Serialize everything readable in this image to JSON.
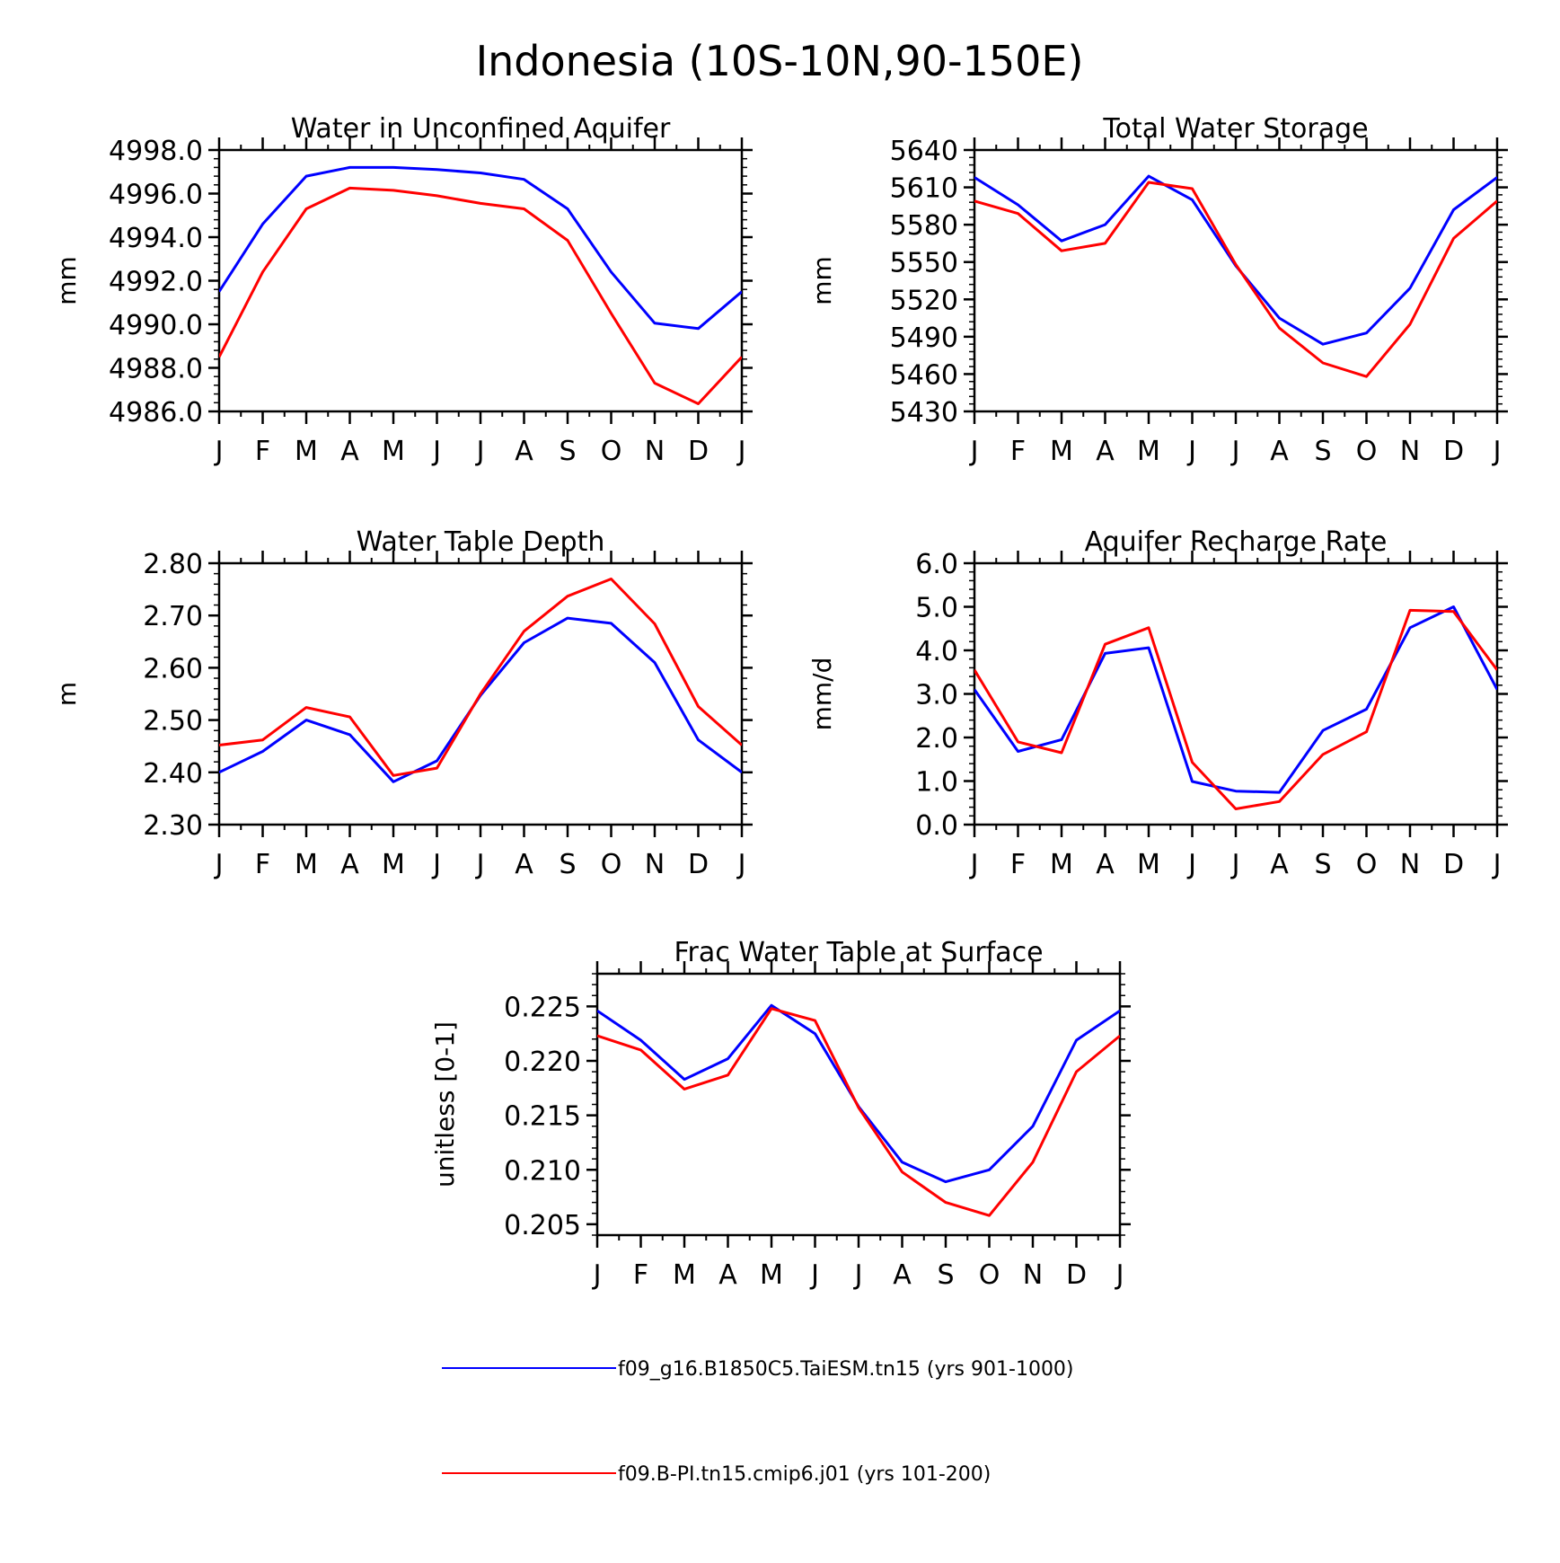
{
  "figure": {
    "title": "Indonesia (10S-10N,90-150E)"
  },
  "legend": [
    {
      "label": "f09_g16.B1850C5.TaiESM.tn15 (yrs 901-1000)",
      "color": "#0000ff"
    },
    {
      "label": "f09.B-PI.tn15.cmip6.j01 (yrs 101-200)",
      "color": "#ff0000"
    }
  ],
  "chart_data": [
    {
      "type": "line",
      "title": "Water in Unconfined Aquifer",
      "xlabel": "",
      "ylabel": "mm",
      "x": [
        "J",
        "F",
        "M",
        "A",
        "M",
        "J",
        "J",
        "A",
        "S",
        "O",
        "N",
        "D",
        "J"
      ],
      "ylim": [
        4986.0,
        4998.0
      ],
      "yticks": [
        4986.0,
        4988.0,
        4990.0,
        4992.0,
        4994.0,
        4996.0,
        4998.0
      ],
      "ytick_labels": [
        "4986.0",
        "4988.0",
        "4990.0",
        "4992.0",
        "4994.0",
        "4996.0",
        "4998.0"
      ],
      "series": [
        {
          "name": "f09_g16.B1850C5.TaiESM.tn15 (yrs 901-1000)",
          "color": "#0000ff",
          "values": [
            4991.5,
            4994.6,
            4996.8,
            4997.2,
            4997.2,
            4997.1,
            4996.95,
            4996.65,
            4995.3,
            4992.4,
            4990.05,
            4989.8,
            4991.5
          ]
        },
        {
          "name": "f09.B-PI.tn15.cmip6.j01 (yrs 101-200)",
          "color": "#ff0000",
          "values": [
            4988.5,
            4992.4,
            4995.3,
            4996.25,
            4996.15,
            4995.9,
            4995.55,
            4995.3,
            4993.85,
            4990.5,
            4987.3,
            4986.35,
            4988.5
          ]
        }
      ]
    },
    {
      "type": "line",
      "title": "Total Water Storage",
      "xlabel": "",
      "ylabel": "mm",
      "x": [
        "J",
        "F",
        "M",
        "A",
        "M",
        "J",
        "J",
        "A",
        "S",
        "O",
        "N",
        "D",
        "J"
      ],
      "ylim": [
        5430,
        5640
      ],
      "yticks": [
        5430,
        5460,
        5490,
        5520,
        5550,
        5580,
        5610,
        5640
      ],
      "ytick_labels": [
        "5430",
        "5460",
        "5490",
        "5520",
        "5550",
        "5580",
        "5610",
        "5640"
      ],
      "series": [
        {
          "name": "f09_g16.B1850C5.TaiESM.tn15 (yrs 901-1000)",
          "color": "#0000ff",
          "values": [
            5618,
            5596,
            5567,
            5580,
            5619,
            5600,
            5547,
            5505,
            5484,
            5493,
            5529,
            5592,
            5618
          ]
        },
        {
          "name": "f09.B-PI.tn15.cmip6.j01 (yrs 101-200)",
          "color": "#ff0000",
          "values": [
            5599,
            5589,
            5559,
            5565,
            5614,
            5609,
            5548,
            5497,
            5469,
            5458,
            5500,
            5569,
            5599
          ]
        }
      ]
    },
    {
      "type": "line",
      "title": "Water Table Depth",
      "xlabel": "",
      "ylabel": "m",
      "x": [
        "J",
        "F",
        "M",
        "A",
        "M",
        "J",
        "J",
        "A",
        "S",
        "O",
        "N",
        "D",
        "J"
      ],
      "ylim": [
        2.3,
        2.8
      ],
      "yticks": [
        2.3,
        2.4,
        2.5,
        2.6,
        2.7,
        2.8
      ],
      "ytick_labels": [
        "2.30",
        "2.40",
        "2.50",
        "2.60",
        "2.70",
        "2.80"
      ],
      "series": [
        {
          "name": "f09_g16.B1850C5.TaiESM.tn15 (yrs 901-1000)",
          "color": "#0000ff",
          "values": [
            2.4,
            2.44,
            2.5,
            2.472,
            2.382,
            2.422,
            2.547,
            2.648,
            2.695,
            2.685,
            2.61,
            2.462,
            2.4
          ]
        },
        {
          "name": "f09.B-PI.tn15.cmip6.j01 (yrs 101-200)",
          "color": "#ff0000",
          "values": [
            2.452,
            2.462,
            2.524,
            2.506,
            2.394,
            2.408,
            2.55,
            2.67,
            2.737,
            2.77,
            2.684,
            2.526,
            2.452
          ]
        }
      ]
    },
    {
      "type": "line",
      "title": "Aquifer Recharge Rate",
      "xlabel": "",
      "ylabel": "mm/d",
      "x": [
        "J",
        "F",
        "M",
        "A",
        "M",
        "J",
        "J",
        "A",
        "S",
        "O",
        "N",
        "D",
        "J"
      ],
      "ylim": [
        0.0,
        6.0
      ],
      "yticks": [
        0.0,
        1.0,
        2.0,
        3.0,
        4.0,
        5.0,
        6.0
      ],
      "ytick_labels": [
        "0.0",
        "1.0",
        "2.0",
        "3.0",
        "4.0",
        "5.0",
        "6.0"
      ],
      "series": [
        {
          "name": "f09_g16.B1850C5.TaiESM.tn15 (yrs 901-1000)",
          "color": "#0000ff",
          "values": [
            3.1,
            1.68,
            1.95,
            3.93,
            4.06,
            0.99,
            0.77,
            0.74,
            2.16,
            2.65,
            4.52,
            5.0,
            3.1
          ]
        },
        {
          "name": "f09.B-PI.tn15.cmip6.j01 (yrs 101-200)",
          "color": "#ff0000",
          "values": [
            3.55,
            1.9,
            1.65,
            4.14,
            4.52,
            1.43,
            0.36,
            0.53,
            1.61,
            2.13,
            4.92,
            4.89,
            3.55
          ]
        }
      ]
    },
    {
      "type": "line",
      "title": "Frac Water Table at Surface",
      "xlabel": "",
      "ylabel": "unitless [0-1]",
      "x": [
        "J",
        "F",
        "M",
        "A",
        "M",
        "J",
        "J",
        "A",
        "S",
        "O",
        "N",
        "D",
        "J"
      ],
      "ylim": [
        0.204,
        0.228
      ],
      "yticks": [
        0.205,
        0.21,
        0.215,
        0.22,
        0.225
      ],
      "ytick_labels": [
        "0.205",
        "0.210",
        "0.215",
        "0.220",
        "0.225"
      ],
      "series": [
        {
          "name": "f09_g16.B1850C5.TaiESM.tn15 (yrs 901-1000)",
          "color": "#0000ff",
          "values": [
            0.2246,
            0.2219,
            0.2183,
            0.2202,
            0.2251,
            0.2225,
            0.2158,
            0.2107,
            0.2089,
            0.21,
            0.214,
            0.2219,
            0.2246
          ]
        },
        {
          "name": "f09.B-PI.tn15.cmip6.j01 (yrs 101-200)",
          "color": "#ff0000",
          "values": [
            0.2223,
            0.221,
            0.2174,
            0.2187,
            0.2248,
            0.2237,
            0.2157,
            0.2098,
            0.207,
            0.2058,
            0.2107,
            0.219,
            0.2223
          ]
        }
      ]
    }
  ]
}
